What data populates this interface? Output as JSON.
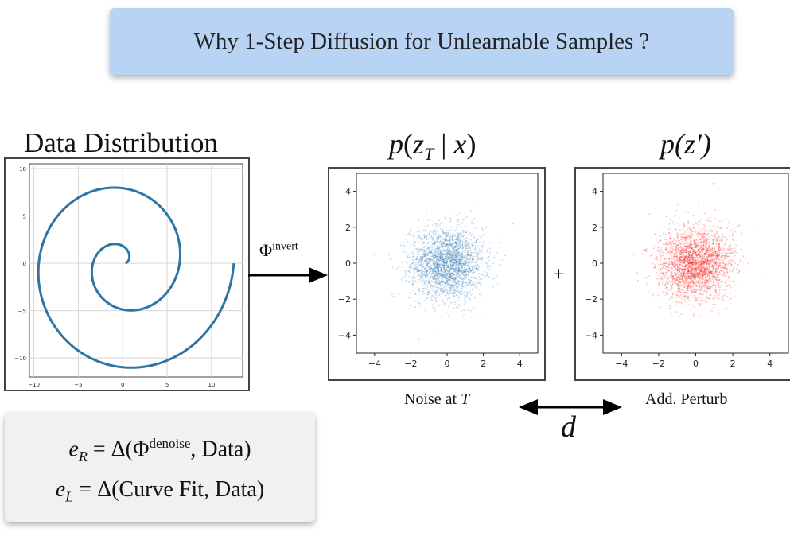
{
  "banner": {
    "text": "Why 1-Step Diffusion for Unlearnable Samples ?"
  },
  "data_panel": {
    "title": "Data Distribution",
    "x_ticks": [
      "−10",
      "−5",
      "0",
      "5",
      "10"
    ],
    "y_ticks": [
      "10",
      "5",
      "0",
      "−5",
      "−10"
    ]
  },
  "invert_arrow": {
    "symbol": "Φ",
    "superscript": "invert"
  },
  "noise_panel": {
    "title_var": "p",
    "title_arg": "z",
    "title_sub": "T",
    "title_cond": "x",
    "caption_text": "Noise at ",
    "caption_var": "T",
    "ticks": [
      "−4",
      "−2",
      "0",
      "2",
      "4"
    ],
    "color": "#2e78b4"
  },
  "plus": {
    "symbol": "+"
  },
  "perturb_panel": {
    "title": "p(z′)",
    "caption": "Add. Perturb",
    "ticks": [
      "−4",
      "−2",
      "0",
      "2",
      "4"
    ],
    "color": "#ff1a1a"
  },
  "distance": {
    "label": "d"
  },
  "formulas": {
    "line1_lhs": "e",
    "line1_sub": "R",
    "line1_eq": " = Δ(Φ",
    "line1_sup": "denoise",
    "line1_rest": ", Data)",
    "line2_lhs": "e",
    "line2_sub": "L",
    "line2_eq": " = Δ(Curve Fit, Data)"
  },
  "chart_data": [
    {
      "type": "line",
      "series": [
        {
          "curve": "spiral",
          "center": [
            0,
            0
          ],
          "start_radius": 0.3,
          "end_point": [
            12.5,
            0
          ],
          "turns": 2
        }
      ],
      "xlim": [
        -10.5,
        13.5
      ],
      "ylim": [
        -12,
        10.5
      ],
      "x_ticks": [
        -10,
        -5,
        0,
        5,
        10
      ],
      "y_ticks": [
        10,
        5,
        0,
        -5,
        -10
      ],
      "grid": true,
      "color": "#2e75a6"
    },
    {
      "type": "scatter",
      "distribution": "standard gaussian",
      "mean": [
        0,
        0
      ],
      "std": 1,
      "xlim": [
        -5,
        5
      ],
      "ylim": [
        -5,
        5
      ],
      "x_ticks": [
        -4,
        -2,
        0,
        2,
        4
      ],
      "y_ticks": [
        -4,
        -2,
        0,
        2,
        4
      ],
      "color": "#2e78b4"
    },
    {
      "type": "scatter",
      "distribution": "standard gaussian",
      "mean": [
        0,
        0
      ],
      "std": 1,
      "xlim": [
        -5,
        5
      ],
      "ylim": [
        -5,
        5
      ],
      "x_ticks": [
        -4,
        -2,
        0,
        2,
        4
      ],
      "y_ticks": [
        -4,
        -2,
        0,
        2,
        4
      ],
      "color": "#ff1a1a"
    }
  ]
}
